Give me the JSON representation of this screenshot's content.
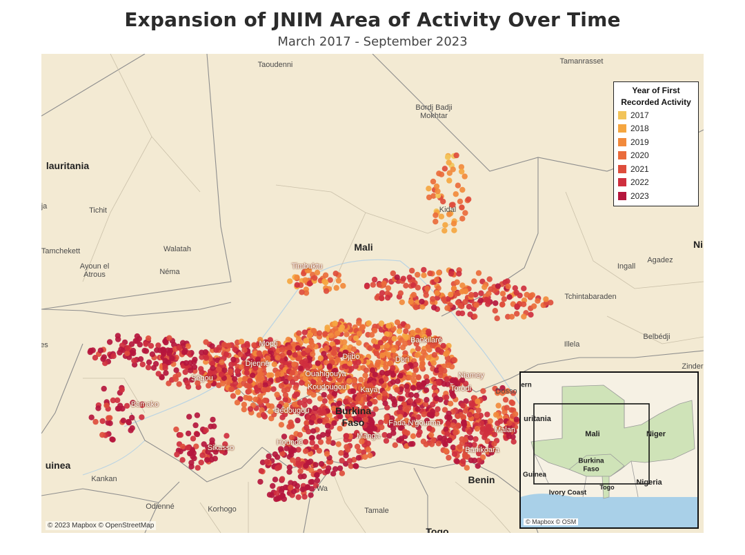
{
  "header": {
    "title": "Expansion of JNIM Area of Activity Over Time",
    "subtitle": "March 2017 - September 2023"
  },
  "map": {
    "attribution": "© 2023 Mapbox © OpenStreetMap",
    "country_labels": [
      {
        "id": "mauritania",
        "text": "lauritania"
      },
      {
        "id": "mali",
        "text": "Mali"
      },
      {
        "id": "niger",
        "text": "Ni"
      },
      {
        "id": "burkina",
        "text": "Burkina"
      },
      {
        "id": "faso",
        "text": "Faso"
      },
      {
        "id": "guinea",
        "text": "uinea"
      },
      {
        "id": "benin",
        "text": "Benin"
      },
      {
        "id": "togo",
        "text": "Togo"
      }
    ],
    "place_labels": [
      {
        "id": "taoudenni",
        "text": "Taoudenni"
      },
      {
        "id": "tamanrasset",
        "text": "Tamanrasset"
      },
      {
        "id": "bordj1",
        "text": "Bordj Badji"
      },
      {
        "id": "bordj2",
        "text": "Mokhtar"
      },
      {
        "id": "tichit",
        "text": "Tichit"
      },
      {
        "id": "ja",
        "text": "ja"
      },
      {
        "id": "tamchekett",
        "text": "Tamchekett"
      },
      {
        "id": "walatah",
        "text": "Walatah"
      },
      {
        "id": "ayoun1",
        "text": "Ayoun el"
      },
      {
        "id": "ayoun2",
        "text": "Atrous"
      },
      {
        "id": "nema",
        "text": "Néma"
      },
      {
        "id": "kidal",
        "text": "Kidal"
      },
      {
        "id": "ingall",
        "text": "Ingall"
      },
      {
        "id": "agadez",
        "text": "Agadez"
      },
      {
        "id": "tchinta",
        "text": "Tchintabaraden"
      },
      {
        "id": "timbuktu",
        "text": "Timbuktu"
      },
      {
        "id": "illela",
        "text": "Illela"
      },
      {
        "id": "belbedji",
        "text": "Belbédji"
      },
      {
        "id": "zinder",
        "text": "Zinder"
      },
      {
        "id": "dosso",
        "text": "Dosso"
      },
      {
        "id": "es",
        "text": "es"
      },
      {
        "id": "mopti",
        "text": "Mopti"
      },
      {
        "id": "djenne",
        "text": "Djenné"
      },
      {
        "id": "djibo",
        "text": "Djibo"
      },
      {
        "id": "dori",
        "text": "Dori"
      },
      {
        "id": "bankilare",
        "text": "Bankilaré"
      },
      {
        "id": "segou",
        "text": "Ségou"
      },
      {
        "id": "ouahigouya",
        "text": "Ouahigouya"
      },
      {
        "id": "koudougou",
        "text": "Koudougou"
      },
      {
        "id": "kaya",
        "text": "Kaya"
      },
      {
        "id": "niamey",
        "text": "Niamey"
      },
      {
        "id": "torodi",
        "text": "Torodi"
      },
      {
        "id": "bamako",
        "text": "Bamako"
      },
      {
        "id": "dedougou",
        "text": "Dédougou"
      },
      {
        "id": "fada",
        "text": "Fada N'gourma"
      },
      {
        "id": "malan",
        "text": "Malan"
      },
      {
        "id": "sikasso",
        "text": "Sikasso"
      },
      {
        "id": "hounde",
        "text": "Houndé"
      },
      {
        "id": "manga",
        "text": "Manga"
      },
      {
        "id": "banikoara",
        "text": "Banikoara"
      },
      {
        "id": "kankan",
        "text": "Kankan"
      },
      {
        "id": "odienne",
        "text": "Odienné"
      },
      {
        "id": "korhogo",
        "text": "Korhogo"
      },
      {
        "id": "wa",
        "text": "Wa"
      },
      {
        "id": "tamale",
        "text": "Tamale"
      }
    ]
  },
  "legend": {
    "title_line1": "Year of First",
    "title_line2": "Recorded Activity",
    "items": [
      {
        "year": "2017",
        "color": "#f2c45a"
      },
      {
        "year": "2018",
        "color": "#f5a640"
      },
      {
        "year": "2019",
        "color": "#f28a3c"
      },
      {
        "year": "2020",
        "color": "#ea6b3b"
      },
      {
        "year": "2021",
        "color": "#de4d3c"
      },
      {
        "year": "2022",
        "color": "#cf2f3e"
      },
      {
        "year": "2023",
        "color": "#b5163d"
      }
    ]
  },
  "inset": {
    "attribution": "© Mapbox © OSM",
    "labels": [
      {
        "id": "in-mauritania",
        "text": "uritania"
      },
      {
        "id": "in-mali",
        "text": "Mali"
      },
      {
        "id": "in-niger",
        "text": "Niger"
      },
      {
        "id": "in-burkina1",
        "text": "Burkina"
      },
      {
        "id": "in-burkina2",
        "text": "Faso"
      },
      {
        "id": "in-guinea",
        "text": "Guinea"
      },
      {
        "id": "in-ivory",
        "text": "Ivory Coast"
      },
      {
        "id": "in-togo",
        "text": "Togo"
      },
      {
        "id": "in-nigeria",
        "text": "Nigeria"
      },
      {
        "id": "in-ern",
        "text": "ern"
      }
    ]
  }
}
